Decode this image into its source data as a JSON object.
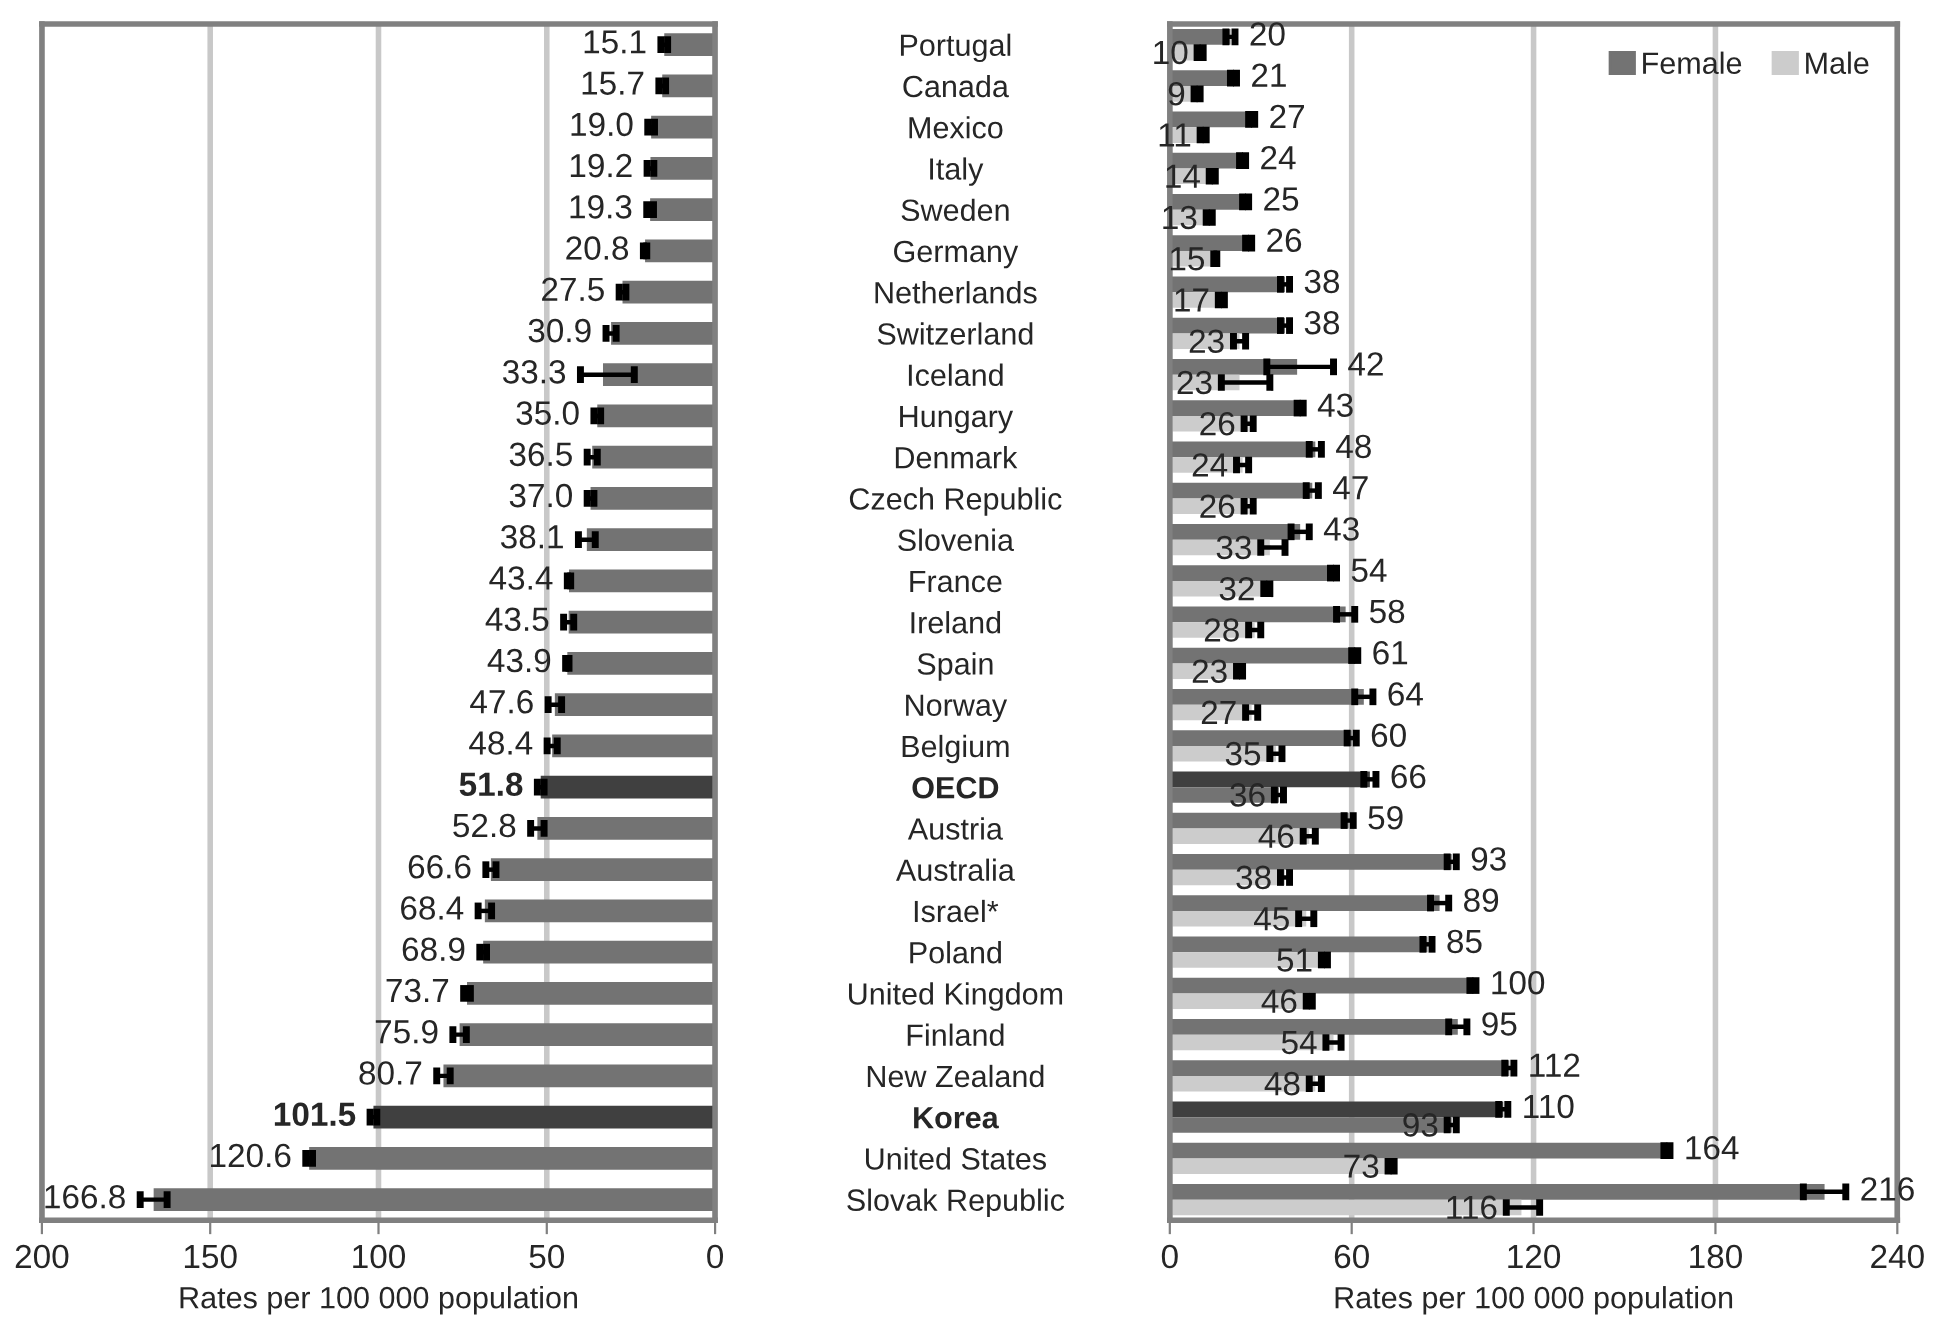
{
  "chart_data": [
    {
      "type": "bar",
      "orientation": "horizontal",
      "xlabel": "Rates per 100 000 population",
      "categories": [
        "Portugal",
        "Canada",
        "Mexico",
        "Italy",
        "Sweden",
        "Germany",
        "Netherlands",
        "Switzerland",
        "Iceland",
        "Hungary",
        "Denmark",
        "Czech Republic",
        "Slovenia",
        "France",
        "Ireland",
        "Spain",
        "Norway",
        "Belgium",
        "OECD",
        "Austria",
        "Australia",
        "Israel*",
        "Poland",
        "United Kingdom",
        "Finland",
        "New Zealand",
        "Korea",
        "United States",
        "Slovak Republic"
      ],
      "values": [
        15.1,
        15.7,
        19.0,
        19.2,
        19.3,
        20.8,
        27.5,
        30.9,
        33.3,
        35.0,
        36.5,
        37.0,
        38.1,
        43.4,
        43.5,
        43.9,
        47.6,
        48.4,
        51.8,
        52.8,
        66.6,
        68.4,
        68.9,
        73.7,
        75.9,
        80.7,
        101.5,
        120.6,
        166.8
      ],
      "value_labels": [
        "15.1",
        "15.7",
        "19.0",
        "19.2",
        "19.3",
        "20.8",
        "27.5",
        "30.9",
        "33.3",
        "35.0",
        "36.5",
        "37.0",
        "38.1",
        "43.4",
        "43.5",
        "43.9",
        "47.6",
        "48.4",
        "51.8",
        "52.8",
        "66.6",
        "68.4",
        "68.9",
        "73.7",
        "75.9",
        "80.7",
        "101.5",
        "120.6",
        "166.8"
      ],
      "errors": [
        1,
        1,
        1,
        1,
        1,
        0.5,
        1,
        1.5,
        [
          24,
          40
        ],
        1,
        1.5,
        1,
        2.5,
        0.5,
        1.5,
        0.5,
        2,
        1.5,
        1,
        2,
        1.5,
        2,
        1,
        1,
        2,
        2,
        1,
        1,
        4
      ],
      "colors": [
        "#737373",
        "#737373",
        "#737373",
        "#737373",
        "#737373",
        "#737373",
        "#737373",
        "#737373",
        "#737373",
        "#737373",
        "#737373",
        "#737373",
        "#737373",
        "#737373",
        "#737373",
        "#737373",
        "#737373",
        "#737373",
        "#404040",
        "#737373",
        "#737373",
        "#737373",
        "#737373",
        "#737373",
        "#737373",
        "#737373",
        "#404040",
        "#737373",
        "#737373"
      ],
      "xlim": [
        200,
        0
      ],
      "xticks": [
        200,
        150,
        100,
        50,
        0
      ],
      "grid": "x"
    },
    {
      "type": "bar",
      "orientation": "horizontal",
      "xlabel": "Rates per 100 000 population",
      "series": [
        {
          "name": "Female",
          "color": "#737373",
          "values": [
            20,
            21,
            27,
            24,
            25,
            26,
            38,
            38,
            42,
            43,
            48,
            47,
            43,
            54,
            58,
            61,
            64,
            60,
            66,
            59,
            93,
            89,
            85,
            100,
            95,
            112,
            110,
            164,
            216
          ],
          "errors": [
            1.5,
            1,
            1,
            1,
            1,
            1,
            1.5,
            1.5,
            [
              32,
              54
            ],
            1,
            2,
            2,
            3,
            1,
            3,
            1,
            3,
            1.5,
            2,
            1.5,
            1.5,
            3,
            1.5,
            1,
            3,
            1.5,
            1.5,
            1,
            [
              209,
              223
            ]
          ],
          "colors": [
            "#737373",
            "#737373",
            "#737373",
            "#737373",
            "#737373",
            "#737373",
            "#737373",
            "#737373",
            "#737373",
            "#737373",
            "#737373",
            "#737373",
            "#737373",
            "#737373",
            "#737373",
            "#737373",
            "#737373",
            "#737373",
            "#404040",
            "#737373",
            "#737373",
            "#737373",
            "#737373",
            "#737373",
            "#737373",
            "#737373",
            "#404040",
            "#737373",
            "#737373"
          ]
        },
        {
          "name": "Male",
          "color": "#cccccc",
          "values": [
            10,
            9,
            11,
            14,
            13,
            15,
            17,
            23,
            23,
            26,
            24,
            26,
            33,
            32,
            28,
            23,
            27,
            35,
            36,
            46,
            38,
            45,
            51,
            46,
            54,
            48,
            93,
            73,
            116
          ],
          "errors": [
            1,
            1,
            1,
            1,
            1,
            0.5,
            1,
            2,
            [
              17,
              33
            ],
            1.5,
            2,
            1.5,
            [
              30,
              38
            ],
            1,
            2,
            1,
            2,
            2,
            1.5,
            2,
            1.5,
            2.5,
            1,
            1,
            2.5,
            2,
            1.5,
            1,
            [
              111,
              122
            ]
          ],
          "colors": [
            "#cccccc",
            "#cccccc",
            "#cccccc",
            "#cccccc",
            "#cccccc",
            "#cccccc",
            "#cccccc",
            "#cccccc",
            "#cccccc",
            "#cccccc",
            "#cccccc",
            "#cccccc",
            "#cccccc",
            "#cccccc",
            "#cccccc",
            "#cccccc",
            "#cccccc",
            "#cccccc",
            "#737373",
            "#cccccc",
            "#cccccc",
            "#cccccc",
            "#cccccc",
            "#cccccc",
            "#cccccc",
            "#cccccc",
            "#737373",
            "#cccccc",
            "#cccccc"
          ]
        }
      ],
      "data_labels": true,
      "legend": "top right",
      "xlim": [
        0,
        240
      ],
      "xticks": [
        0,
        60,
        120,
        180,
        240
      ],
      "grid": "x",
      "tick_labels": "x"
    }
  ]
}
